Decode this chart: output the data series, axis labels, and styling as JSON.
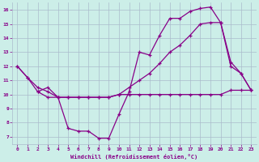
{
  "xlabel": "Windchill (Refroidissement éolien,°C)",
  "bg_color": "#cceee8",
  "line_color": "#880088",
  "grid_color": "#aabbcc",
  "series1_x": [
    0,
    1,
    2,
    3,
    4,
    5,
    6,
    7,
    8,
    9,
    10,
    11,
    12,
    13,
    14,
    15,
    16,
    17,
    18,
    19,
    20,
    21,
    22,
    23
  ],
  "series1_y": [
    12,
    11.2,
    10.2,
    10.5,
    9.8,
    7.6,
    7.4,
    7.4,
    6.9,
    6.9,
    8.6,
    10.2,
    13.0,
    12.8,
    14.2,
    15.4,
    15.4,
    15.9,
    16.1,
    16.2,
    15.1,
    12.0,
    11.5,
    10.3
  ],
  "series2_x": [
    0,
    1,
    2,
    3,
    4,
    5,
    6,
    7,
    8,
    9,
    10,
    11,
    12,
    13,
    14,
    15,
    16,
    17,
    18,
    19,
    20,
    21,
    22,
    23
  ],
  "series2_y": [
    12,
    11.2,
    10.5,
    10.2,
    9.8,
    9.8,
    9.8,
    9.8,
    9.8,
    9.8,
    10.0,
    10.5,
    11.0,
    11.5,
    12.2,
    13.0,
    13.5,
    14.2,
    15.0,
    15.1,
    15.1,
    12.3,
    11.5,
    10.3
  ],
  "series3_x": [
    2,
    3,
    4,
    5,
    6,
    7,
    8,
    9,
    10,
    11,
    12,
    13,
    14,
    15,
    16,
    17,
    18,
    19,
    20,
    21,
    22,
    23
  ],
  "series3_y": [
    10.2,
    9.8,
    9.8,
    9.8,
    9.8,
    9.8,
    9.8,
    9.8,
    10.0,
    10.0,
    10.0,
    10.0,
    10.0,
    10.0,
    10.0,
    10.0,
    10.0,
    10.0,
    10.0,
    10.3,
    10.3,
    10.3
  ],
  "ylim": [
    6.5,
    16.5
  ],
  "xlim": [
    -0.5,
    23.5
  ],
  "yticks": [
    7,
    8,
    9,
    10,
    11,
    12,
    13,
    14,
    15,
    16
  ],
  "xticks": [
    0,
    1,
    2,
    3,
    4,
    5,
    6,
    7,
    8,
    9,
    10,
    11,
    12,
    13,
    14,
    15,
    16,
    17,
    18,
    19,
    20,
    21,
    22,
    23
  ]
}
